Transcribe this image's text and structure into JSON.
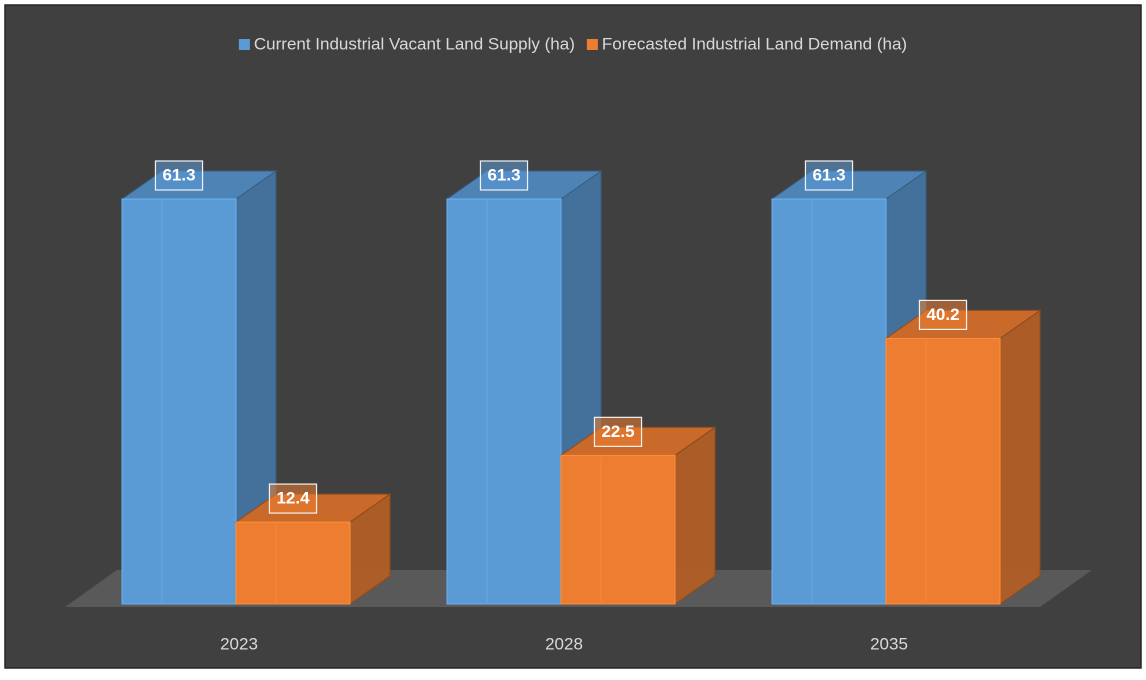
{
  "chart_data": {
    "type": "bar",
    "categories": [
      "2023",
      "2028",
      "2035"
    ],
    "series": [
      {
        "name": "Current Industrial Vacant Land Supply (ha)",
        "color": "#5b9bd5",
        "values": [
          61.3,
          61.3,
          61.3
        ]
      },
      {
        "name": "Forecasted Industrial Land Demand (ha)",
        "color": "#ed7d31",
        "values": [
          12.4,
          22.5,
          40.2
        ]
      }
    ],
    "legend": "top"
  }
}
